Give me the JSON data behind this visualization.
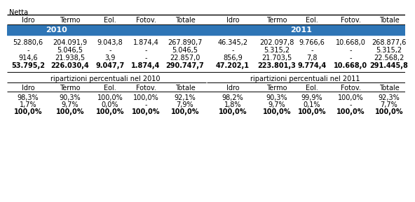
{
  "title_left": "Netta",
  "col_headers": [
    "Idro",
    "Termo",
    "Eol.",
    "Fotov.",
    "Totale",
    "Idro",
    "Termo",
    "Eol.",
    "Fotov.",
    "Totale"
  ],
  "year_headers": [
    "2010",
    "2011"
  ],
  "year_header_color": "#2E75B6",
  "year_header_text_color": "#FFFFFF",
  "main_rows": [
    [
      "52.880,6",
      "204.091,9",
      "9.043,8",
      "1.874,4",
      "267.890,7",
      "46.345,2",
      "202.097,8",
      "9.766,6",
      "10.668,0",
      "268.877,6"
    ],
    [
      "-",
      "5.046,5",
      "-",
      "-",
      "5.046,5",
      "-",
      "5.315,2",
      "-",
      "-",
      "5.315,2"
    ],
    [
      "914,6",
      "21.938,5",
      "3,9",
      "-",
      "22.857,0",
      "856,9",
      "21.703,5",
      "7,8",
      "-",
      "22.568,2"
    ],
    [
      "53.795,2",
      "226.030,4",
      "9.047,7",
      "1.874,4",
      "290.747,7",
      "47.202,1",
      "223.801,3",
      "9.774,4",
      "10.668,0",
      "291.445,8"
    ]
  ],
  "section2_title_left": "ripartizioni percentuali nel 2010",
  "section2_title_right": "ripartizioni percentuali nel 2011",
  "section2_col_headers": [
    "Idro",
    "Termo",
    "Eol.",
    "Fotov.",
    "Totale"
  ],
  "pct_rows_2010": [
    [
      "98,3%",
      "90,3%",
      "100,0%",
      "100,0%",
      "92,1%"
    ],
    [
      "1,7%",
      "9,7%",
      "0,0%",
      "-",
      "7,9%"
    ],
    [
      "100,0%",
      "100,0%",
      "100,0%",
      "100,0%",
      "100,0%"
    ]
  ],
  "pct_rows_2011": [
    [
      "98,2%",
      "90,3%",
      "99,9%",
      "100,0%",
      "92,3%"
    ],
    [
      "1,8%",
      "9,7%",
      "0,1%",
      "-",
      "7,7%"
    ],
    [
      "100,0%",
      "100,0%",
      "100,0%",
      "100,0%",
      "100,0%"
    ]
  ],
  "bg_color": "#FFFFFF",
  "text_color": "#000000",
  "blue_color": "#2E75B6",
  "white_text": "#FFFFFF",
  "col_positions": [
    30,
    90,
    147,
    198,
    254,
    322,
    385,
    435,
    490,
    545
  ],
  "s2_col_left": [
    30,
    90,
    147,
    198,
    254
  ],
  "s2_col_right": [
    322,
    385,
    435,
    490,
    545
  ]
}
